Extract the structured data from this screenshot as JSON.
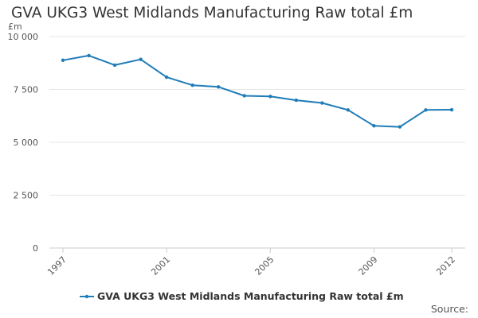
{
  "chart_data": {
    "type": "line",
    "title": "GVA UKG3 West Midlands Manufacturing Raw total £m",
    "ylabel": "£m",
    "xlabel": "",
    "ylim": [
      0,
      10000
    ],
    "yticks": [
      0,
      2500,
      5000,
      7500,
      10000
    ],
    "ytick_labels": [
      "0",
      "2 500",
      "5 000",
      "7 500",
      "10 000"
    ],
    "xticks": [
      1997,
      2001,
      2005,
      2009,
      2012
    ],
    "grid": true,
    "legend": "bottom",
    "series": [
      {
        "name": "GVA UKG3 West Midlands Manufacturing Raw total £m",
        "color": "#1f7cb8",
        "x": [
          1997,
          1998,
          1999,
          2000,
          2001,
          2002,
          2003,
          2004,
          2005,
          2006,
          2007,
          2008,
          2009,
          2010,
          2011,
          2012
        ],
        "values": [
          8880,
          9100,
          8650,
          8920,
          8080,
          7700,
          7620,
          7200,
          7170,
          6990,
          6860,
          6530,
          5780,
          5730,
          6530,
          6540
        ]
      }
    ]
  },
  "source_label": "Source:"
}
